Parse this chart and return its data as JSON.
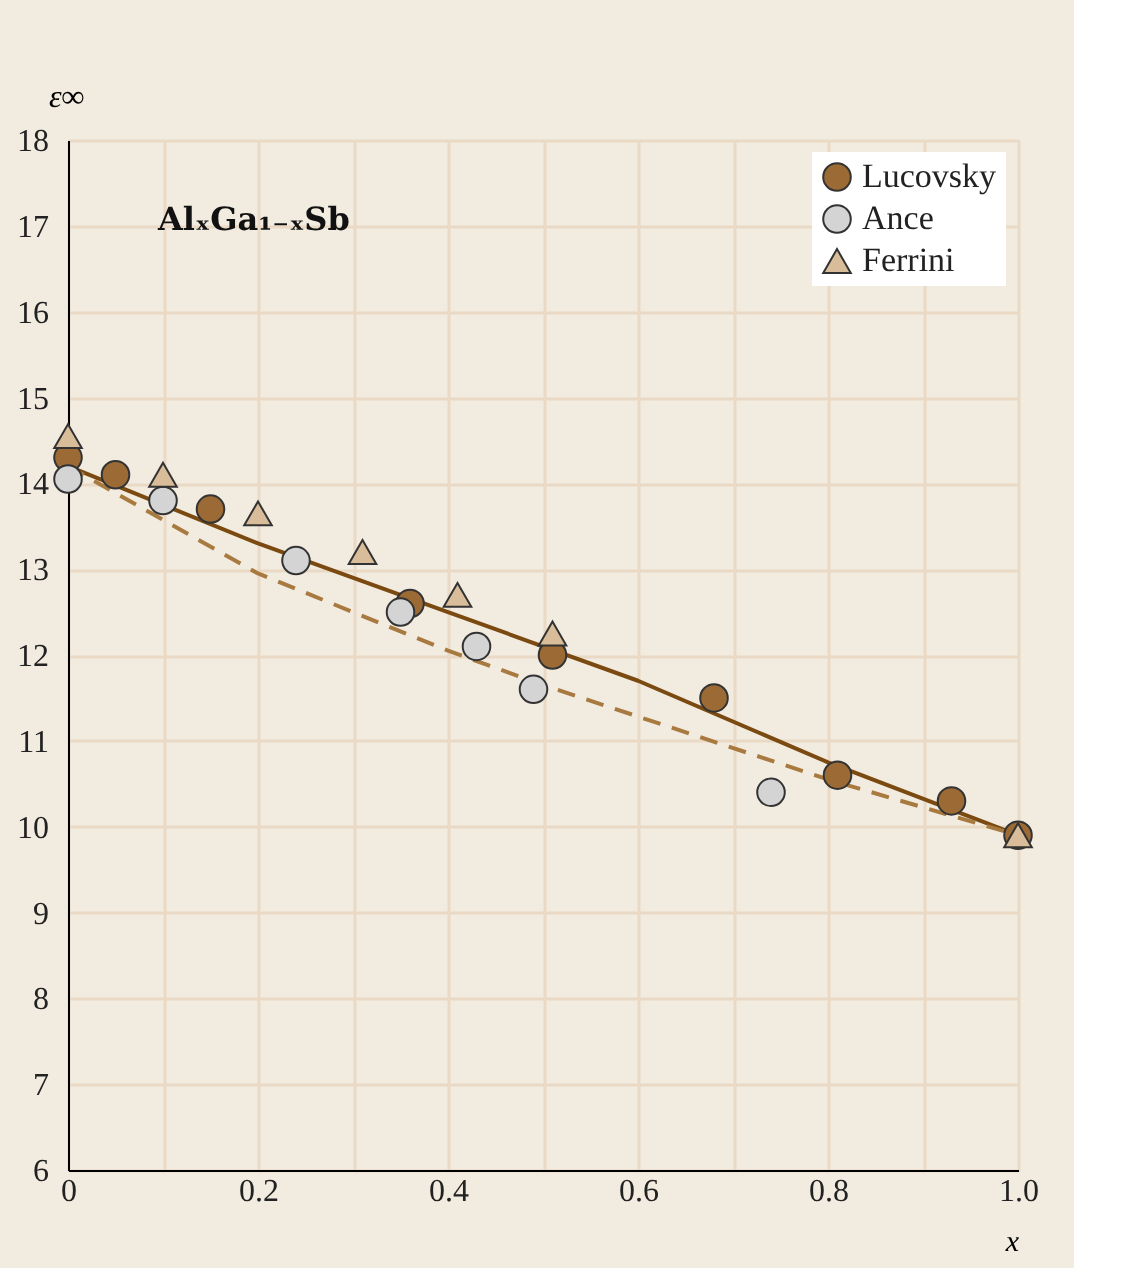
{
  "chart_data": {
    "type": "scatter",
    "title": "AlₓGa₁₋ₓSb",
    "xlabel": "x",
    "ylabel": "ε∞",
    "xlim": [
      0,
      1.0
    ],
    "ylim": [
      6,
      18
    ],
    "xticks": [
      0,
      {
        "value": 0.1,
        "label": null
      },
      0.2,
      {
        "value": 0.3,
        "label": null
      },
      0.4,
      {
        "value": 0.5,
        "label": null
      },
      0.6,
      {
        "value": 0.7,
        "label": null
      },
      0.8,
      {
        "value": 0.9,
        "label": null
      },
      {
        "value": 1.0,
        "label": "1.0"
      }
    ],
    "yticks": [
      6,
      7,
      8,
      9,
      10,
      11,
      12,
      13,
      14,
      15,
      16,
      17,
      18
    ],
    "grid": true,
    "legend": "top right",
    "series": [
      {
        "name": "Lucovsky",
        "color": "#9c6b35",
        "marker": "circle",
        "x": [
          0,
          0.05,
          0.15,
          0.36,
          0.51,
          0.68,
          0.81,
          0.93,
          1.0
        ],
        "values": [
          14.3,
          14.1,
          13.7,
          12.6,
          12.0,
          11.5,
          10.6,
          10.3,
          9.9
        ]
      },
      {
        "name": "Ance",
        "color": "#d4d4d4",
        "marker": "circle",
        "x": [
          0,
          0.1,
          0.24,
          0.35,
          0.43,
          0.49,
          0.74
        ],
        "values": [
          14.05,
          13.8,
          13.1,
          12.5,
          12.1,
          11.6,
          10.4
        ]
      },
      {
        "name": "Ferrini",
        "color": "#d9bd9a",
        "marker": "triangle",
        "x": [
          0,
          0.1,
          0.2,
          0.31,
          0.41,
          0.51,
          1.0
        ],
        "values": [
          14.55,
          14.1,
          13.65,
          13.2,
          12.7,
          12.25,
          9.9
        ]
      },
      {
        "type": "line",
        "color": "#7a4a10",
        "line_style": "solid",
        "x": [
          0,
          0.2,
          0.4,
          0.6,
          0.8,
          1.0
        ],
        "values": [
          14.2,
          13.3,
          12.5,
          11.7,
          10.75,
          9.9
        ]
      },
      {
        "type": "line",
        "color": "#a87a40",
        "line_style": "dashed",
        "x": [
          0,
          0.2,
          0.4,
          0.5,
          0.8,
          1.0
        ],
        "values": [
          14.2,
          12.95,
          12.05,
          11.65,
          10.55,
          9.9
        ]
      }
    ]
  }
}
